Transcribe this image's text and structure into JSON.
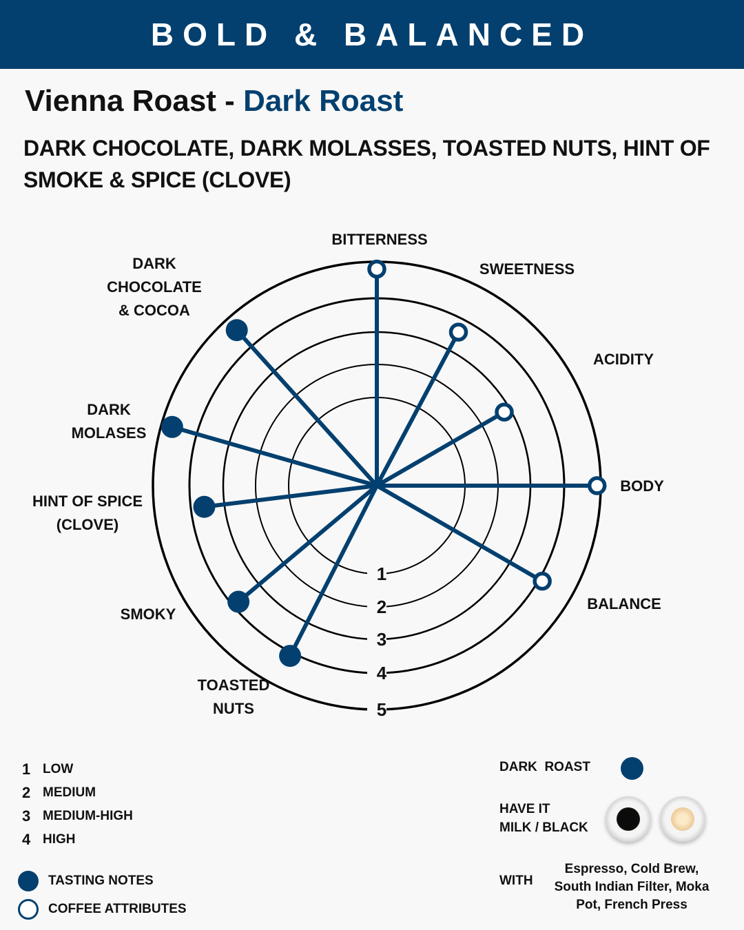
{
  "header": {
    "banner": "BOLD & BALANCED"
  },
  "title": {
    "name": "Vienna Roast",
    "separator": " - ",
    "roast": "Dark Roast"
  },
  "subtitle": "DARK CHOCOLATE, DARK MOLASSES, TOASTED NUTS, HINT OF SMOKE & SPICE (CLOVE)",
  "chart_data": {
    "type": "radar",
    "rings": [
      1,
      2,
      3,
      4,
      5
    ],
    "tick_labels": [
      "1",
      "2",
      "3",
      "4",
      "5"
    ],
    "axes": [
      {
        "label": [
          "BITTERNESS"
        ],
        "value": 4.8,
        "marker": "hollow"
      },
      {
        "label": [
          "SWEETNESS"
        ],
        "value": 3.6,
        "marker": "hollow"
      },
      {
        "label": [
          "ACIDITY"
        ],
        "value": 2.8,
        "marker": "hollow"
      },
      {
        "label": [
          "BODY"
        ],
        "value": 4.9,
        "marker": "hollow"
      },
      {
        "label": [
          "BALANCE"
        ],
        "value": 4.1,
        "marker": "hollow"
      },
      {
        "label": [
          "TOASTED",
          "NUTS"
        ],
        "value": 4.1,
        "marker": "filled"
      },
      {
        "label": [
          "SMOKY"
        ],
        "value": 3.8,
        "marker": "filled"
      },
      {
        "label": [
          "HINT OF SPICE",
          "(CLOVE)"
        ],
        "value": 3.6,
        "marker": "filled"
      },
      {
        "label": [
          "DARK",
          "MOLASES"
        ],
        "value": 4.7,
        "marker": "filled"
      },
      {
        "label": [
          "DARK",
          "CHOCOLATE",
          "& COCOA"
        ],
        "value": 4.6,
        "marker": "filled"
      }
    ],
    "color": "#03406f"
  },
  "scale_legend": [
    {
      "num": "1",
      "text": "LOW"
    },
    {
      "num": "2",
      "text": "MEDIUM"
    },
    {
      "num": "3",
      "text": "MEDIUM-HIGH"
    },
    {
      "num": "4",
      "text": "HIGH"
    }
  ],
  "marker_legend": {
    "filled": "TASTING NOTES",
    "hollow": "COFFEE ATTRIBUTES"
  },
  "info": {
    "roast_label": "DARK  ROAST",
    "have_it_line1": "HAVE IT",
    "have_it_line2": "MILK / BLACK",
    "with_label": "WITH",
    "with_text": "Espresso, Cold Brew, South Indian Filter, Moka Pot, French Press",
    "icons": [
      "black-coffee-cup-icon",
      "milk-coffee-cup-icon"
    ]
  }
}
